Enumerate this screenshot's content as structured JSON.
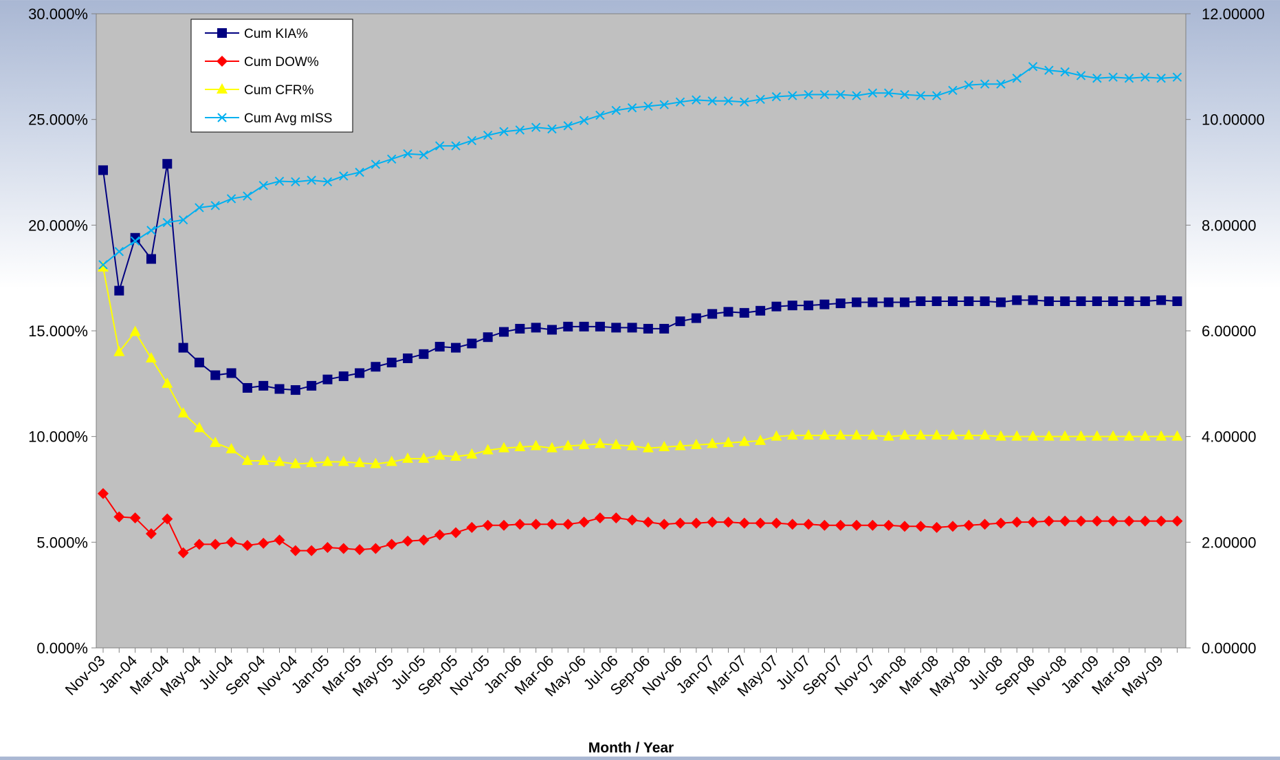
{
  "chart_data": {
    "type": "line",
    "title": "",
    "xlabel": "Month / Year",
    "ylabel": "",
    "y2label": "",
    "grid": false,
    "legend_position": "top-left",
    "plot_background": "#c0c0c0",
    "ylim": [
      0,
      30
    ],
    "y2lim": [
      0,
      12
    ],
    "yticks": [
      "0.000%",
      "5.000%",
      "10.000%",
      "15.000%",
      "20.000%",
      "25.000%",
      "30.000%"
    ],
    "y2ticks": [
      "0.00000",
      "2.00000",
      "4.00000",
      "6.00000",
      "8.00000",
      "10.00000",
      "12.00000"
    ],
    "x": [
      "Nov-03",
      "Dec-03",
      "Jan-04",
      "Feb-04",
      "Mar-04",
      "Apr-04",
      "May-04",
      "Jun-04",
      "Jul-04",
      "Aug-04",
      "Sep-04",
      "Oct-04",
      "Nov-04",
      "Dec-04",
      "Jan-05",
      "Feb-05",
      "Mar-05",
      "Apr-05",
      "May-05",
      "Jun-05",
      "Jul-05",
      "Aug-05",
      "Sep-05",
      "Oct-05",
      "Nov-05",
      "Dec-05",
      "Jan-06",
      "Feb-06",
      "Mar-06",
      "Apr-06",
      "May-06",
      "Jun-06",
      "Jul-06",
      "Aug-06",
      "Sep-06",
      "Oct-06",
      "Nov-06",
      "Dec-06",
      "Jan-07",
      "Feb-07",
      "Mar-07",
      "Apr-07",
      "May-07",
      "Jun-07",
      "Jul-07",
      "Aug-07",
      "Sep-07",
      "Oct-07",
      "Nov-07",
      "Dec-07",
      "Jan-08",
      "Feb-08",
      "Mar-08",
      "Apr-08",
      "May-08",
      "Jun-08",
      "Jul-08",
      "Aug-08",
      "Sep-08",
      "Oct-08",
      "Nov-08",
      "Dec-08",
      "Jan-09",
      "Feb-09",
      "Mar-09",
      "Apr-09",
      "May-09",
      "Jun-09"
    ],
    "xtick_labels": [
      "Nov-03",
      "Jan-04",
      "Mar-04",
      "May-04",
      "Jul-04",
      "Sep-04",
      "Nov-04",
      "Jan-05",
      "Mar-05",
      "May-05",
      "Jul-05",
      "Sep-05",
      "Nov-05",
      "Jan-06",
      "Mar-06",
      "May-06",
      "Jul-06",
      "Sep-06",
      "Nov-06",
      "Jan-07",
      "Mar-07",
      "May-07",
      "Jul-07",
      "Sep-07",
      "Nov-07",
      "Jan-08",
      "Mar-08",
      "May-08",
      "Jul-08",
      "Sep-08",
      "Nov-08",
      "Jan-09",
      "Mar-09",
      "May-09"
    ],
    "series": [
      {
        "name": "Cum KIA%",
        "axis": "left",
        "color": "#000080",
        "marker": "square",
        "values": [
          22.6,
          16.9,
          19.4,
          18.4,
          22.9,
          14.2,
          13.5,
          12.9,
          13.0,
          12.3,
          12.4,
          12.25,
          12.2,
          12.4,
          12.7,
          12.85,
          13.0,
          13.3,
          13.5,
          13.7,
          13.9,
          14.25,
          14.2,
          14.4,
          14.7,
          14.95,
          15.1,
          15.15,
          15.05,
          15.2,
          15.2,
          15.2,
          15.15,
          15.15,
          15.1,
          15.1,
          15.45,
          15.6,
          15.8,
          15.9,
          15.85,
          15.95,
          16.15,
          16.2,
          16.2,
          16.25,
          16.3,
          16.35,
          16.35,
          16.35,
          16.35,
          16.4,
          16.4,
          16.4,
          16.4,
          16.4,
          16.35,
          16.45,
          16.45,
          16.4,
          16.4,
          16.4,
          16.4,
          16.4,
          16.4,
          16.4,
          16.45,
          16.4
        ]
      },
      {
        "name": "Cum DOW%",
        "axis": "left",
        "color": "#ff0000",
        "marker": "diamond",
        "values": [
          7.3,
          6.2,
          6.15,
          5.4,
          6.1,
          4.5,
          4.9,
          4.9,
          5.0,
          4.85,
          4.95,
          5.1,
          4.6,
          4.6,
          4.75,
          4.7,
          4.65,
          4.7,
          4.9,
          5.05,
          5.1,
          5.35,
          5.45,
          5.7,
          5.8,
          5.8,
          5.85,
          5.85,
          5.85,
          5.85,
          5.95,
          6.15,
          6.15,
          6.05,
          5.95,
          5.85,
          5.9,
          5.9,
          5.95,
          5.95,
          5.9,
          5.9,
          5.9,
          5.85,
          5.85,
          5.8,
          5.8,
          5.8,
          5.8,
          5.8,
          5.75,
          5.75,
          5.7,
          5.75,
          5.8,
          5.85,
          5.9,
          5.95,
          5.95,
          6.0,
          6.0,
          6.0,
          6.0,
          6.0,
          6.0,
          6.0,
          6.0,
          6.0
        ]
      },
      {
        "name": "Cum CFR%",
        "axis": "left",
        "color": "#ffff00",
        "marker": "triangle",
        "values": [
          18.0,
          14.0,
          14.95,
          13.7,
          12.5,
          11.1,
          10.4,
          9.7,
          9.4,
          8.85,
          8.85,
          8.8,
          8.7,
          8.75,
          8.8,
          8.8,
          8.75,
          8.7,
          8.8,
          8.95,
          8.95,
          9.1,
          9.05,
          9.15,
          9.35,
          9.45,
          9.5,
          9.55,
          9.45,
          9.55,
          9.6,
          9.65,
          9.6,
          9.55,
          9.45,
          9.5,
          9.55,
          9.6,
          9.65,
          9.7,
          9.75,
          9.8,
          10.0,
          10.05,
          10.05,
          10.05,
          10.05,
          10.05,
          10.05,
          10.0,
          10.05,
          10.05,
          10.05,
          10.05,
          10.05,
          10.05,
          10.0,
          10.0,
          10.0,
          10.0,
          10.0,
          10.0,
          10.0,
          10.0,
          10.0,
          10.0,
          10.0,
          10.0
        ]
      },
      {
        "name": "Cum Avg mISS",
        "axis": "right",
        "color": "#00b0f0",
        "marker": "x",
        "values": [
          7.25,
          7.5,
          7.7,
          7.9,
          8.05,
          8.1,
          8.33,
          8.37,
          8.5,
          8.55,
          8.75,
          8.83,
          8.82,
          8.85,
          8.82,
          8.93,
          9.0,
          9.15,
          9.25,
          9.35,
          9.33,
          9.5,
          9.5,
          9.6,
          9.7,
          9.77,
          9.8,
          9.85,
          9.82,
          9.88,
          9.98,
          10.08,
          10.17,
          10.22,
          10.25,
          10.28,
          10.33,
          10.37,
          10.35,
          10.35,
          10.33,
          10.38,
          10.43,
          10.45,
          10.47,
          10.47,
          10.47,
          10.45,
          10.5,
          10.5,
          10.47,
          10.45,
          10.45,
          10.55,
          10.65,
          10.67,
          10.67,
          10.78,
          11.0,
          10.93,
          10.9,
          10.83,
          10.78,
          10.8,
          10.78,
          10.8,
          10.78,
          10.8
        ]
      }
    ]
  }
}
